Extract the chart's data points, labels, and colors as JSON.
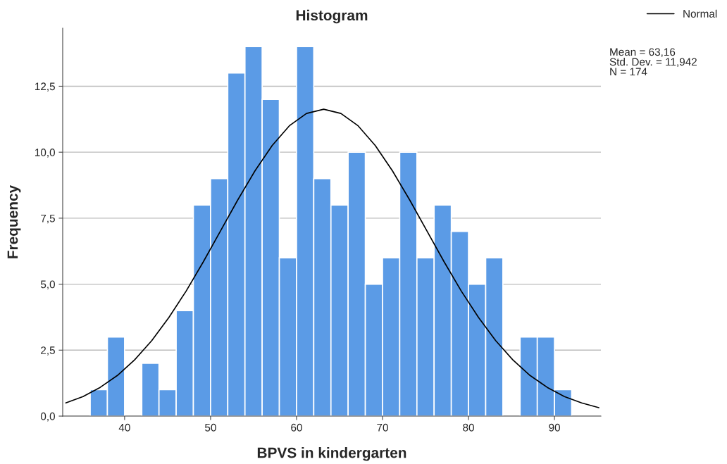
{
  "chart_data": {
    "type": "histogram",
    "title": "Histogram",
    "xlabel": "BPVS in kindergarten",
    "ylabel": "Frequency",
    "bins": [
      36,
      38,
      40,
      42,
      44,
      46,
      48,
      50,
      52,
      54,
      56,
      58,
      60,
      62,
      64,
      66,
      68,
      70,
      72,
      74,
      76,
      78,
      80,
      82,
      84,
      86,
      88,
      90,
      92
    ],
    "values": [
      1,
      3,
      0,
      2,
      1,
      4,
      8,
      9,
      13,
      14,
      12,
      6,
      14,
      9,
      8,
      10,
      5,
      6,
      10,
      6,
      8,
      7,
      5,
      6,
      0,
      3,
      3,
      1
    ],
    "color": "#5b9be6",
    "series": [
      {
        "name": "Normal",
        "type": "line",
        "color": "#000000",
        "x": [
          33.16,
          35.16,
          37.16,
          39.16,
          41.16,
          43.16,
          45.16,
          47.16,
          49.16,
          51.16,
          53.16,
          55.16,
          57.16,
          59.16,
          61.16,
          63.16,
          65.16,
          67.16,
          69.16,
          71.16,
          73.16,
          75.16,
          77.16,
          79.16,
          81.16,
          83.16,
          85.16,
          87.16,
          89.16,
          91.16,
          93.16,
          95.16
        ],
        "values": [
          0.5,
          0.74,
          1.09,
          1.54,
          2.13,
          2.86,
          3.74,
          4.74,
          5.85,
          7.02,
          8.19,
          9.29,
          10.25,
          11.0,
          11.47,
          11.63,
          11.47,
          11.0,
          10.25,
          9.29,
          8.19,
          7.02,
          5.85,
          4.74,
          3.74,
          2.86,
          2.13,
          1.54,
          1.09,
          0.74,
          0.5,
          0.32
        ]
      }
    ],
    "xlim": [
      32.8,
      95.4
    ],
    "xticks": [
      40,
      50,
      60,
      70,
      80,
      90
    ],
    "ylim": [
      0,
      14.7
    ],
    "yticks": [
      {
        "value": 0,
        "label": "0,0"
      },
      {
        "value": 2.5,
        "label": "2,5"
      },
      {
        "value": 5,
        "label": "5,0"
      },
      {
        "value": 7.5,
        "label": "7,5"
      },
      {
        "value": 10,
        "label": "10,0"
      },
      {
        "value": 12.5,
        "label": "12,5"
      }
    ],
    "grid": "y",
    "legend": "top right",
    "annotations": [
      "Mean = 63,16",
      "Std. Dev. = 11,942",
      "N = 174"
    ]
  }
}
